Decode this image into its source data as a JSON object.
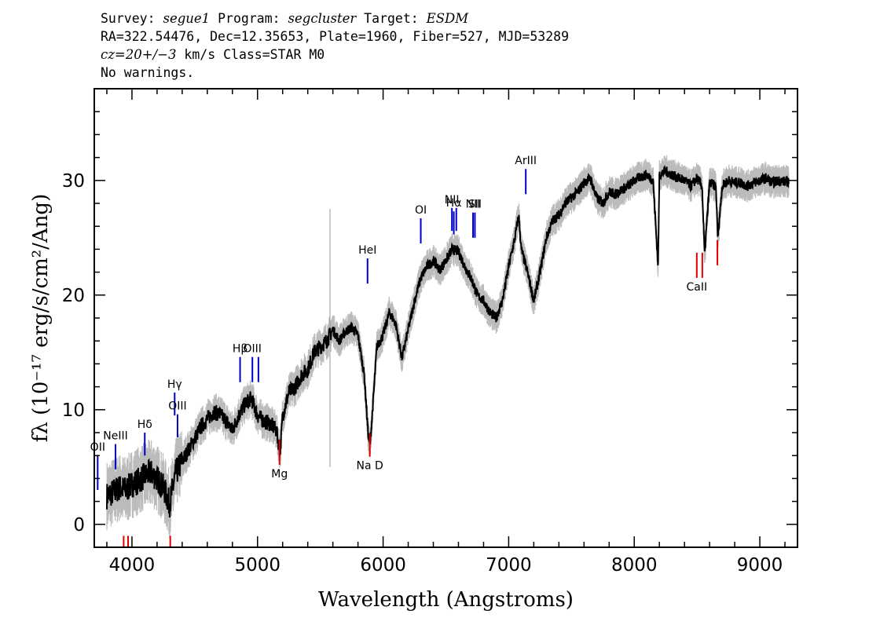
{
  "header": {
    "survey_label": "Survey:",
    "survey": "segue1",
    "program_label": "Program:",
    "program": "segcluster",
    "target_label": "Target:",
    "target": "ESDM",
    "line2": "RA=322.54476, Dec=12.35653, Plate=1960, Fiber=527, MJD=53289",
    "cz_value": "cz=20+/−3",
    "cz_suffix": " km/s Class=STAR M0",
    "line4": "No warnings."
  },
  "chart_data": {
    "type": "line",
    "xlabel": "Wavelength (Angstroms)",
    "ylabel": "fλ (10⁻¹⁷ erg/s/cm²/Ang)",
    "xlim": [
      3700,
      9300
    ],
    "ylim": [
      -2,
      38
    ],
    "x_ticks": [
      4000,
      5000,
      6000,
      7000,
      8000,
      9000
    ],
    "y_ticks": [
      0,
      10,
      20,
      30
    ],
    "grid": false,
    "series": [
      {
        "color": "#000000",
        "error_color": "#bbbbbb",
        "x": [
          3800,
          3850,
          3900,
          3950,
          4000,
          4050,
          4100,
          4150,
          4200,
          4250,
          4300,
          4350,
          4400,
          4450,
          4500,
          4550,
          4600,
          4650,
          4700,
          4750,
          4800,
          4850,
          4900,
          4950,
          5000,
          5050,
          5100,
          5150,
          5180,
          5200,
          5250,
          5300,
          5350,
          5400,
          5450,
          5500,
          5550,
          5600,
          5650,
          5700,
          5750,
          5800,
          5850,
          5880,
          5895,
          5910,
          5950,
          6000,
          6050,
          6100,
          6150,
          6200,
          6250,
          6300,
          6350,
          6400,
          6450,
          6500,
          6550,
          6600,
          6650,
          6700,
          6750,
          6800,
          6850,
          6900,
          6950,
          7000,
          7050,
          7080,
          7100,
          7150,
          7200,
          7250,
          7300,
          7350,
          7400,
          7450,
          7500,
          7550,
          7600,
          7650,
          7700,
          7750,
          7800,
          7850,
          7900,
          7950,
          8000,
          8050,
          8100,
          8150,
          8190,
          8200,
          8250,
          8300,
          8350,
          8400,
          8450,
          8500,
          8540,
          8560,
          8600,
          8650,
          8665,
          8700,
          8750,
          8800,
          8850,
          8900,
          8950,
          9000,
          9050,
          9100,
          9150,
          9200,
          9230
        ],
        "y": [
          2.5,
          2.8,
          3.2,
          3.0,
          3.5,
          3.8,
          4.2,
          4.5,
          4.0,
          3.2,
          1.8,
          4.5,
          5.5,
          6.5,
          7.5,
          8.5,
          9.2,
          9.8,
          9.6,
          9.0,
          8.2,
          9.5,
          10.5,
          11.0,
          9.5,
          9.0,
          8.8,
          8.2,
          6.3,
          9.5,
          11.5,
          12.0,
          13.0,
          13.5,
          15.0,
          15.5,
          16.0,
          17.0,
          16.0,
          16.8,
          17.2,
          16.5,
          13.0,
          8.0,
          6.8,
          9.0,
          15.5,
          16.5,
          18.5,
          17.5,
          14.5,
          17.0,
          19.5,
          21.5,
          22.5,
          23.0,
          22.2,
          23.0,
          24.0,
          23.8,
          22.5,
          21.5,
          20.0,
          19.5,
          18.5,
          18.0,
          19.5,
          22.5,
          25.0,
          27.0,
          24.0,
          22.0,
          19.5,
          22.0,
          25.0,
          26.5,
          27.0,
          28.0,
          28.5,
          29.0,
          29.8,
          30.2,
          28.5,
          28.0,
          29.0,
          28.8,
          29.2,
          29.5,
          30.0,
          30.3,
          30.5,
          30.0,
          22.5,
          30.5,
          30.8,
          30.5,
          30.2,
          30.0,
          29.5,
          30.2,
          29.5,
          23.5,
          29.8,
          29.5,
          25.0,
          29.5,
          30.0,
          29.8,
          29.8,
          29.5,
          29.8,
          30.0,
          30.2,
          29.8,
          30.0,
          29.9,
          29.9
        ]
      }
    ],
    "lines": [
      {
        "label": "OII",
        "display": "OII",
        "x": 3727,
        "y": 3.0,
        "len": 3.0,
        "color": "blue",
        "label_side": "above"
      },
      {
        "label": "NeIII",
        "display": "NeIII",
        "x": 3869,
        "y": 4.8,
        "len": 2.2,
        "color": "blue",
        "label_side": "above"
      },
      {
        "label": "Hδ",
        "display": "Hδ",
        "x": 4102,
        "y": 6.0,
        "len": 2.0,
        "color": "blue",
        "label_side": "above"
      },
      {
        "label": "Hγ",
        "display": "Hγ",
        "x": 4340,
        "y": 9.5,
        "len": 2.0,
        "color": "blue",
        "label_side": "above"
      },
      {
        "label": "OIII",
        "display": "OIII",
        "x": 4363,
        "y": 7.6,
        "len": 2.0,
        "color": "blue",
        "label_side": "above"
      },
      {
        "label": "Hβ",
        "display": "Hβ",
        "x": 4861,
        "y": 12.4,
        "len": 2.2,
        "color": "blue",
        "label_side": "above"
      },
      {
        "label": "OIII",
        "display": "OIII",
        "x": 4959,
        "y": 12.4,
        "len": 2.2,
        "color": "blue",
        "label_side": "above"
      },
      {
        "label": "",
        "display": "",
        "x": 5007,
        "y": 12.4,
        "len": 2.2,
        "color": "blue",
        "label_side": "above"
      },
      {
        "label": "HeI",
        "display": "HeI",
        "x": 5876,
        "y": 21.0,
        "len": 2.2,
        "color": "blue",
        "label_side": "above"
      },
      {
        "label": "OI",
        "display": "OI",
        "x": 6300,
        "y": 24.5,
        "len": 2.2,
        "color": "blue",
        "label_side": "above"
      },
      {
        "label": "NII",
        "display": "NII",
        "x": 6548,
        "y": 25.6,
        "len": 2.0,
        "color": "blue",
        "label_side": "above"
      },
      {
        "label": "Hα",
        "display": "Hα",
        "x": 6563,
        "y": 25.3,
        "len": 2.0,
        "color": "blue",
        "label_side": "above"
      },
      {
        "label": "",
        "display": "",
        "x": 6583,
        "y": 25.6,
        "len": 2.0,
        "color": "blue",
        "label_side": "above"
      },
      {
        "label": "NII",
        "display": "NII",
        "x": 6716,
        "y": 25.0,
        "len": 2.2,
        "color": "blue",
        "label_side": "above"
      },
      {
        "label": "SII",
        "display": "SII",
        "x": 6731,
        "y": 25.0,
        "len": 2.2,
        "color": "blue",
        "label_side": "above"
      },
      {
        "label": "ArIII",
        "display": "ArIII",
        "x": 7136,
        "y": 28.8,
        "len": 2.2,
        "color": "blue",
        "label_side": "above"
      },
      {
        "label": "",
        "display": "",
        "x": 3934,
        "y": -3.0,
        "len": 2.0,
        "color": "red",
        "label_side": "below"
      },
      {
        "label": "",
        "display": "",
        "x": 3969,
        "y": -3.0,
        "len": 2.0,
        "color": "red",
        "label_side": "below"
      },
      {
        "label": "",
        "display": "",
        "x": 4305,
        "y": -3.0,
        "len": 2.0,
        "color": "red",
        "label_side": "below"
      },
      {
        "label": "Mg",
        "display": "Mg",
        "x": 5175,
        "y": 5.2,
        "len": 2.2,
        "color": "red",
        "label_side": "below"
      },
      {
        "label": "Na D",
        "display": "Na D",
        "x": 5894,
        "y": 5.9,
        "len": 2.0,
        "color": "red",
        "label_side": "below"
      },
      {
        "label": "CaII",
        "display": "CaII",
        "x": 8498,
        "y": 21.5,
        "len": 2.2,
        "color": "red",
        "label_side": "below"
      },
      {
        "label": "",
        "display": "",
        "x": 8542,
        "y": 21.5,
        "len": 2.2,
        "color": "red",
        "label_side": "below"
      },
      {
        "label": "",
        "display": "",
        "x": 8662,
        "y": 22.6,
        "len": 2.2,
        "color": "red",
        "label_side": "below"
      }
    ]
  }
}
